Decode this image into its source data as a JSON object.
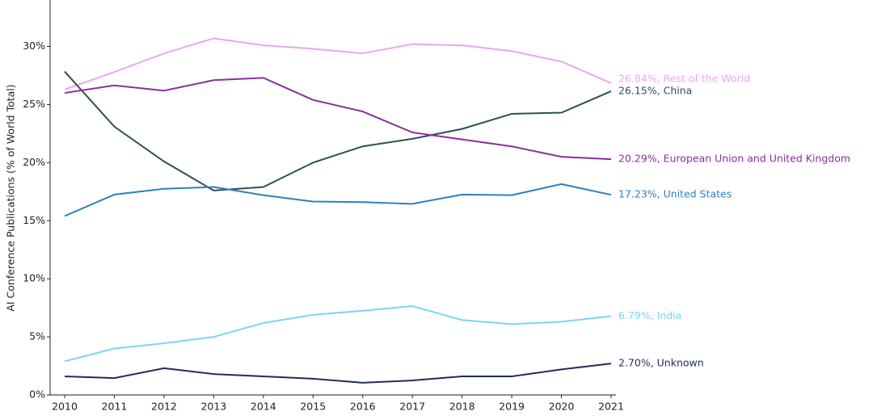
{
  "chart_data": {
    "type": "line",
    "y_label": "AI Conference Publications (% of World Total)",
    "x": [
      2010,
      2011,
      2012,
      2013,
      2014,
      2015,
      2016,
      2017,
      2018,
      2019,
      2020,
      2021
    ],
    "xlim": [
      2010,
      2021
    ],
    "xticks": [
      2010,
      2011,
      2012,
      2013,
      2014,
      2015,
      2016,
      2017,
      2018,
      2019,
      2020,
      2021
    ],
    "ylim": [
      0,
      34
    ],
    "yticks": [
      {
        "value": 0,
        "label": "0%"
      },
      {
        "value": 5,
        "label": "5%"
      },
      {
        "value": 10,
        "label": "10%"
      },
      {
        "value": 15,
        "label": "15%"
      },
      {
        "value": 20,
        "label": "20%"
      },
      {
        "value": 25,
        "label": "25%"
      },
      {
        "value": 30,
        "label": "30%"
      }
    ],
    "grid": false,
    "series": [
      {
        "name": "Rest of the World",
        "color": "#eba6f3",
        "values": [
          26.3,
          27.8,
          29.4,
          30.7,
          30.1,
          29.8,
          29.4,
          30.2,
          30.1,
          29.6,
          28.7,
          26.84
        ],
        "value_labels": [
          null,
          null,
          null,
          null,
          null,
          null,
          null,
          null,
          null,
          null,
          null,
          "26.84%, Rest of the World"
        ]
      },
      {
        "name": "China",
        "color": "#2c4f55",
        "values": [
          27.84,
          23.1,
          20.1,
          17.6,
          17.9,
          20.0,
          21.4,
          22.05,
          22.9,
          24.2,
          24.3,
          26.15
        ],
        "value_labels": [
          null,
          null,
          null,
          null,
          null,
          null,
          null,
          null,
          null,
          null,
          null,
          "26.15%, China"
        ]
      },
      {
        "name": "European Union and United Kingdom",
        "color": "#8b2e9c",
        "values": [
          26.0,
          26.65,
          26.2,
          27.1,
          27.3,
          25.4,
          24.4,
          22.6,
          22.0,
          21.4,
          20.5,
          20.29
        ],
        "value_labels": [
          null,
          null,
          null,
          null,
          null,
          null,
          null,
          null,
          null,
          null,
          null,
          "20.29%, European Union and United Kingdom"
        ]
      },
      {
        "name": "United States",
        "color": "#2f80bf",
        "values": [
          15.4,
          17.25,
          17.75,
          17.9,
          17.2,
          16.65,
          16.6,
          16.45,
          17.25,
          17.2,
          18.15,
          17.23
        ],
        "value_labels": [
          null,
          null,
          null,
          null,
          null,
          null,
          null,
          null,
          null,
          null,
          null,
          "17.23%, United States"
        ]
      },
      {
        "name": "India",
        "color": "#7dd3f4",
        "values": [
          2.9,
          4.0,
          4.45,
          5.0,
          6.2,
          6.9,
          7.25,
          7.65,
          6.45,
          6.1,
          6.3,
          6.79
        ],
        "value_labels": [
          null,
          null,
          null,
          null,
          null,
          null,
          null,
          null,
          null,
          null,
          null,
          "6.79%, India"
        ]
      },
      {
        "name": "Unknown",
        "color": "#1f2e57",
        "values": [
          1.6,
          1.45,
          2.3,
          1.8,
          1.6,
          1.4,
          1.05,
          1.25,
          1.6,
          1.6,
          2.2,
          2.7
        ],
        "value_labels": [
          null,
          null,
          null,
          null,
          null,
          null,
          null,
          null,
          null,
          null,
          null,
          "2.70%, Unknown"
        ]
      }
    ]
  }
}
